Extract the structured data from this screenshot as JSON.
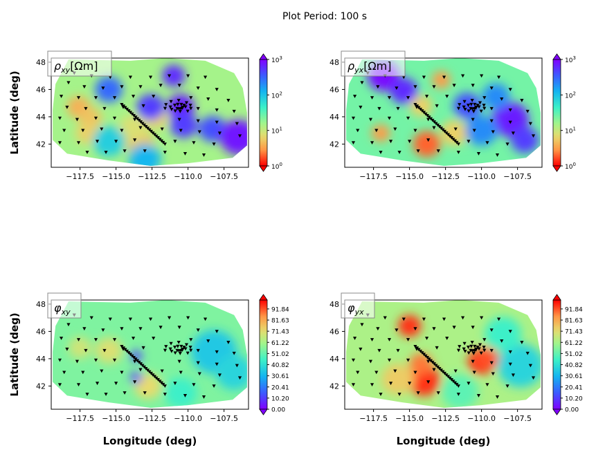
{
  "figure": {
    "suptitle": "Plot Period: 100 s"
  },
  "chart_data": [
    {
      "type": "heatmap",
      "title": "ρxy [Ωm]",
      "title_parts": {
        "symbol": "ρ",
        "sub": "xy",
        "unit": "[Ωm]"
      },
      "xlabel": "",
      "ylabel": "Latitude (deg)",
      "xticks": [
        "−117.5",
        "−115.0",
        "−112.5",
        "−110.0",
        "−107.5"
      ],
      "yticks": [
        "42",
        "44",
        "46",
        "48"
      ],
      "xlim": [
        -119.5,
        -105.8
      ],
      "ylim": [
        40.3,
        48.3
      ],
      "colormap": "rainbow_r",
      "colorbar": {
        "scale": "log",
        "range": [
          1,
          1000
        ],
        "ticks": [
          "10^0",
          "10^1",
          "10^2",
          "10^3"
        ]
      },
      "hotspots": [
        {
          "lon": -117.6,
          "lat": 44.7,
          "value": 4,
          "r": 0.5
        },
        {
          "lon": -116.8,
          "lat": 43.9,
          "value": 5,
          "r": 0.5
        },
        {
          "lon": -117.0,
          "lat": 42.8,
          "value": 6,
          "r": 0.5
        },
        {
          "lon": -113.3,
          "lat": 42.0,
          "value": 5,
          "r": 0.6
        },
        {
          "lon": -112.2,
          "lat": 43.9,
          "value": 6,
          "r": 0.5
        },
        {
          "lon": -113.8,
          "lat": 43.2,
          "value": 8,
          "r": 0.6
        },
        {
          "lon": -112.6,
          "lat": 44.7,
          "value": 500,
          "r": 0.6
        },
        {
          "lon": -110.5,
          "lat": 44.7,
          "value": 700,
          "r": 0.6
        },
        {
          "lon": -110.3,
          "lat": 43.4,
          "value": 500,
          "r": 0.6
        },
        {
          "lon": -108.3,
          "lat": 43.1,
          "value": 400,
          "r": 0.6
        },
        {
          "lon": -106.5,
          "lat": 42.5,
          "value": 800,
          "r": 0.8
        },
        {
          "lon": -111.0,
          "lat": 47.0,
          "value": 600,
          "r": 0.5
        },
        {
          "lon": -115.5,
          "lat": 46.0,
          "value": 300,
          "r": 0.6
        },
        {
          "lon": -113.0,
          "lat": 40.9,
          "value": 120,
          "r": 0.7
        },
        {
          "lon": -115.5,
          "lat": 42.2,
          "value": 80,
          "r": 0.7
        }
      ],
      "background_value": 15
    },
    {
      "type": "heatmap",
      "title": "ρyx [Ωm]",
      "title_parts": {
        "symbol": "ρ",
        "sub": "yx",
        "unit": "[Ωm]"
      },
      "xlabel": "",
      "ylabel": "",
      "xticks": [
        "−117.5",
        "−115.0",
        "−112.5",
        "−110.0",
        "−107.5"
      ],
      "yticks": [
        "42",
        "44",
        "46",
        "48"
      ],
      "xlim": [
        -119.5,
        -105.8
      ],
      "ylim": [
        40.3,
        48.3
      ],
      "colormap": "rainbow_r",
      "colorbar": {
        "scale": "log",
        "range": [
          1,
          1000
        ],
        "ticks": [
          "10^0",
          "10^1",
          "10^2",
          "10^3"
        ]
      },
      "hotspots": [
        {
          "lon": -113.8,
          "lat": 42.0,
          "value": 2,
          "r": 0.6
        },
        {
          "lon": -117.0,
          "lat": 42.8,
          "value": 3,
          "r": 0.4
        },
        {
          "lon": -112.8,
          "lat": 46.7,
          "value": 3,
          "r": 0.4
        },
        {
          "lon": -111.9,
          "lat": 42.8,
          "value": 6,
          "r": 0.6
        },
        {
          "lon": -114.2,
          "lat": 44.8,
          "value": 6,
          "r": 0.5
        },
        {
          "lon": -116.8,
          "lat": 47.0,
          "value": 900,
          "r": 0.7
        },
        {
          "lon": -115.4,
          "lat": 45.9,
          "value": 600,
          "r": 0.6
        },
        {
          "lon": -108.0,
          "lat": 43.8,
          "value": 700,
          "r": 0.8
        },
        {
          "lon": -107.0,
          "lat": 42.3,
          "value": 500,
          "r": 0.6
        },
        {
          "lon": -111.0,
          "lat": 44.8,
          "value": 400,
          "r": 0.6
        },
        {
          "lon": -110.0,
          "lat": 43.0,
          "value": 200,
          "r": 0.7
        },
        {
          "lon": -109.0,
          "lat": 45.5,
          "value": 200,
          "r": 0.6
        }
      ],
      "background_value": 25
    },
    {
      "type": "heatmap",
      "title": "φxy",
      "title_parts": {
        "symbol": "φ",
        "sub": "xy",
        "unit": ""
      },
      "xlabel": "Longitude (deg)",
      "ylabel": "Latitude (deg)",
      "xticks": [
        "−117.5",
        "−115.0",
        "−112.5",
        "−110.0",
        "−107.5"
      ],
      "yticks": [
        "42",
        "44",
        "46",
        "48"
      ],
      "xlim": [
        -119.5,
        -105.8
      ],
      "ylim": [
        40.3,
        48.3
      ],
      "colormap": "rainbow",
      "colorbar": {
        "scale": "linear",
        "range": [
          0,
          100
        ],
        "ticks": [
          "0.00",
          "10.20",
          "20.41",
          "30.61",
          "40.82",
          "51.02",
          "61.22",
          "71.43",
          "81.63",
          "91.84"
        ]
      },
      "hotspots": [
        {
          "lon": -117.5,
          "lat": 44.8,
          "value": 68,
          "r": 0.5
        },
        {
          "lon": -115.5,
          "lat": 44.6,
          "value": 70,
          "r": 0.6
        },
        {
          "lon": -112.8,
          "lat": 42.0,
          "value": 72,
          "r": 0.6
        },
        {
          "lon": -113.6,
          "lat": 44.2,
          "value": 10,
          "r": 0.25
        },
        {
          "lon": -113.6,
          "lat": 42.6,
          "value": 8,
          "r": 0.25
        },
        {
          "lon": -108.2,
          "lat": 44.5,
          "value": 35,
          "r": 1.0
        },
        {
          "lon": -106.8,
          "lat": 43.0,
          "value": 38,
          "r": 0.8
        },
        {
          "lon": -110.5,
          "lat": 41.5,
          "value": 45,
          "r": 0.7
        }
      ],
      "background_value": 55
    },
    {
      "type": "heatmap",
      "title": "φyx",
      "title_parts": {
        "symbol": "φ",
        "sub": "yx",
        "unit": ""
      },
      "xlabel": "Longitude (deg)",
      "ylabel": "",
      "xticks": [
        "−117.5",
        "−115.0",
        "−112.5",
        "−110.0",
        "−107.5"
      ],
      "yticks": [
        "42",
        "44",
        "46",
        "48"
      ],
      "xlim": [
        -119.5,
        -105.8
      ],
      "ylim": [
        40.3,
        48.3
      ],
      "colormap": "rainbow",
      "colorbar": {
        "scale": "linear",
        "range": [
          0,
          100
        ],
        "ticks": [
          "0.00",
          "10.20",
          "20.41",
          "30.61",
          "40.82",
          "51.02",
          "61.22",
          "71.43",
          "81.63",
          "91.84"
        ]
      },
      "hotspots": [
        {
          "lon": -115.0,
          "lat": 46.4,
          "value": 95,
          "r": 0.5
        },
        {
          "lon": -114.0,
          "lat": 42.4,
          "value": 95,
          "r": 0.7
        },
        {
          "lon": -114.2,
          "lat": 43.6,
          "value": 88,
          "r": 0.5
        },
        {
          "lon": -110.0,
          "lat": 43.8,
          "value": 95,
          "r": 0.6
        },
        {
          "lon": -109.6,
          "lat": 44.0,
          "value": 92,
          "r": 0.5
        },
        {
          "lon": -115.8,
          "lat": 42.5,
          "value": 75,
          "r": 0.7
        },
        {
          "lon": -107.3,
          "lat": 43.5,
          "value": 38,
          "r": 1.0
        },
        {
          "lon": -108.5,
          "lat": 45.8,
          "value": 45,
          "r": 0.8
        },
        {
          "lon": -111.5,
          "lat": 41.6,
          "value": 50,
          "r": 0.8
        }
      ],
      "background_value": 62
    }
  ]
}
